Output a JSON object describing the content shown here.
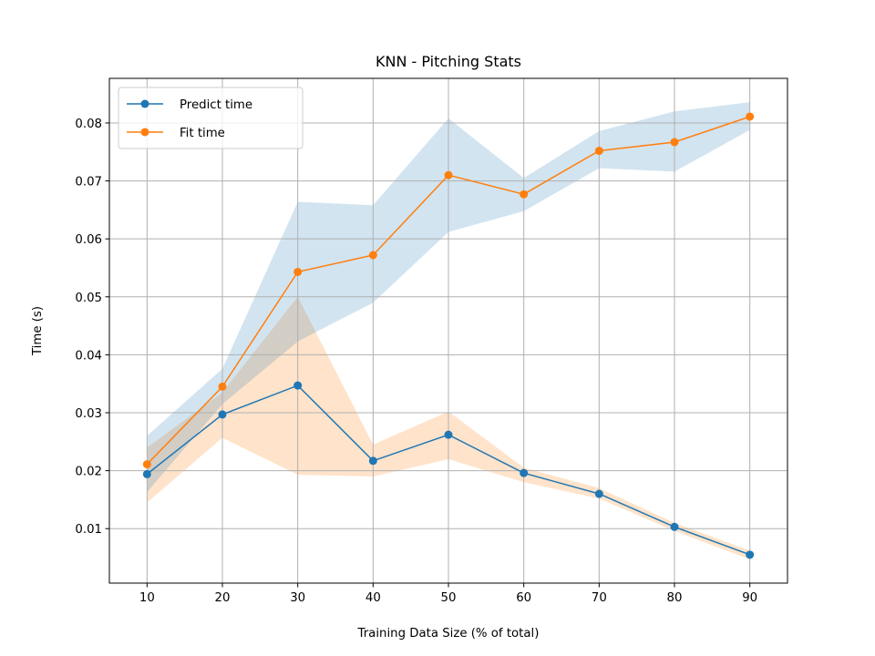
{
  "chart_data": {
    "type": "line",
    "title": "KNN - Pitching Stats",
    "xlabel": "Training Data Size (% of total)",
    "ylabel": "Time (s)",
    "xlim": [
      5,
      95
    ],
    "ylim": [
      0.0006,
      0.0877
    ],
    "xticks": [
      10,
      20,
      30,
      40,
      50,
      60,
      70,
      80,
      90
    ],
    "yticks": [
      0.01,
      0.02,
      0.03,
      0.04,
      0.05,
      0.06,
      0.07,
      0.08
    ],
    "ytick_labels": [
      "0.01",
      "0.02",
      "0.03",
      "0.04",
      "0.05",
      "0.06",
      "0.07",
      "0.08"
    ],
    "grid": true,
    "legend_position": "upper-left",
    "x": [
      10,
      20,
      30,
      40,
      50,
      60,
      70,
      80,
      90
    ],
    "series": [
      {
        "name": "Predict time",
        "color": "#1f77b4",
        "values": [
          0.0194,
          0.0297,
          0.0347,
          0.0217,
          0.0262,
          0.0196,
          0.016,
          0.0103,
          0.0055
        ],
        "band_color": "#ff7f0e",
        "band_lower": [
          0.0145,
          0.0257,
          0.0193,
          0.019,
          0.022,
          0.018,
          0.0152,
          0.0096,
          0.0047
        ],
        "band_upper": [
          0.024,
          0.0335,
          0.05,
          0.0245,
          0.0302,
          0.0205,
          0.017,
          0.011,
          0.0062
        ]
      },
      {
        "name": "Fit time",
        "color": "#ff7f0e",
        "values": [
          0.0211,
          0.0345,
          0.0543,
          0.0572,
          0.071,
          0.0677,
          0.0752,
          0.0767,
          0.0811
        ],
        "band_color": "#1f77b4",
        "band_lower": [
          0.0163,
          0.0315,
          0.0423,
          0.049,
          0.0612,
          0.0648,
          0.0722,
          0.0716,
          0.0788
        ],
        "band_upper": [
          0.026,
          0.0376,
          0.0664,
          0.0658,
          0.0808,
          0.0705,
          0.0786,
          0.082,
          0.0836
        ]
      }
    ]
  }
}
